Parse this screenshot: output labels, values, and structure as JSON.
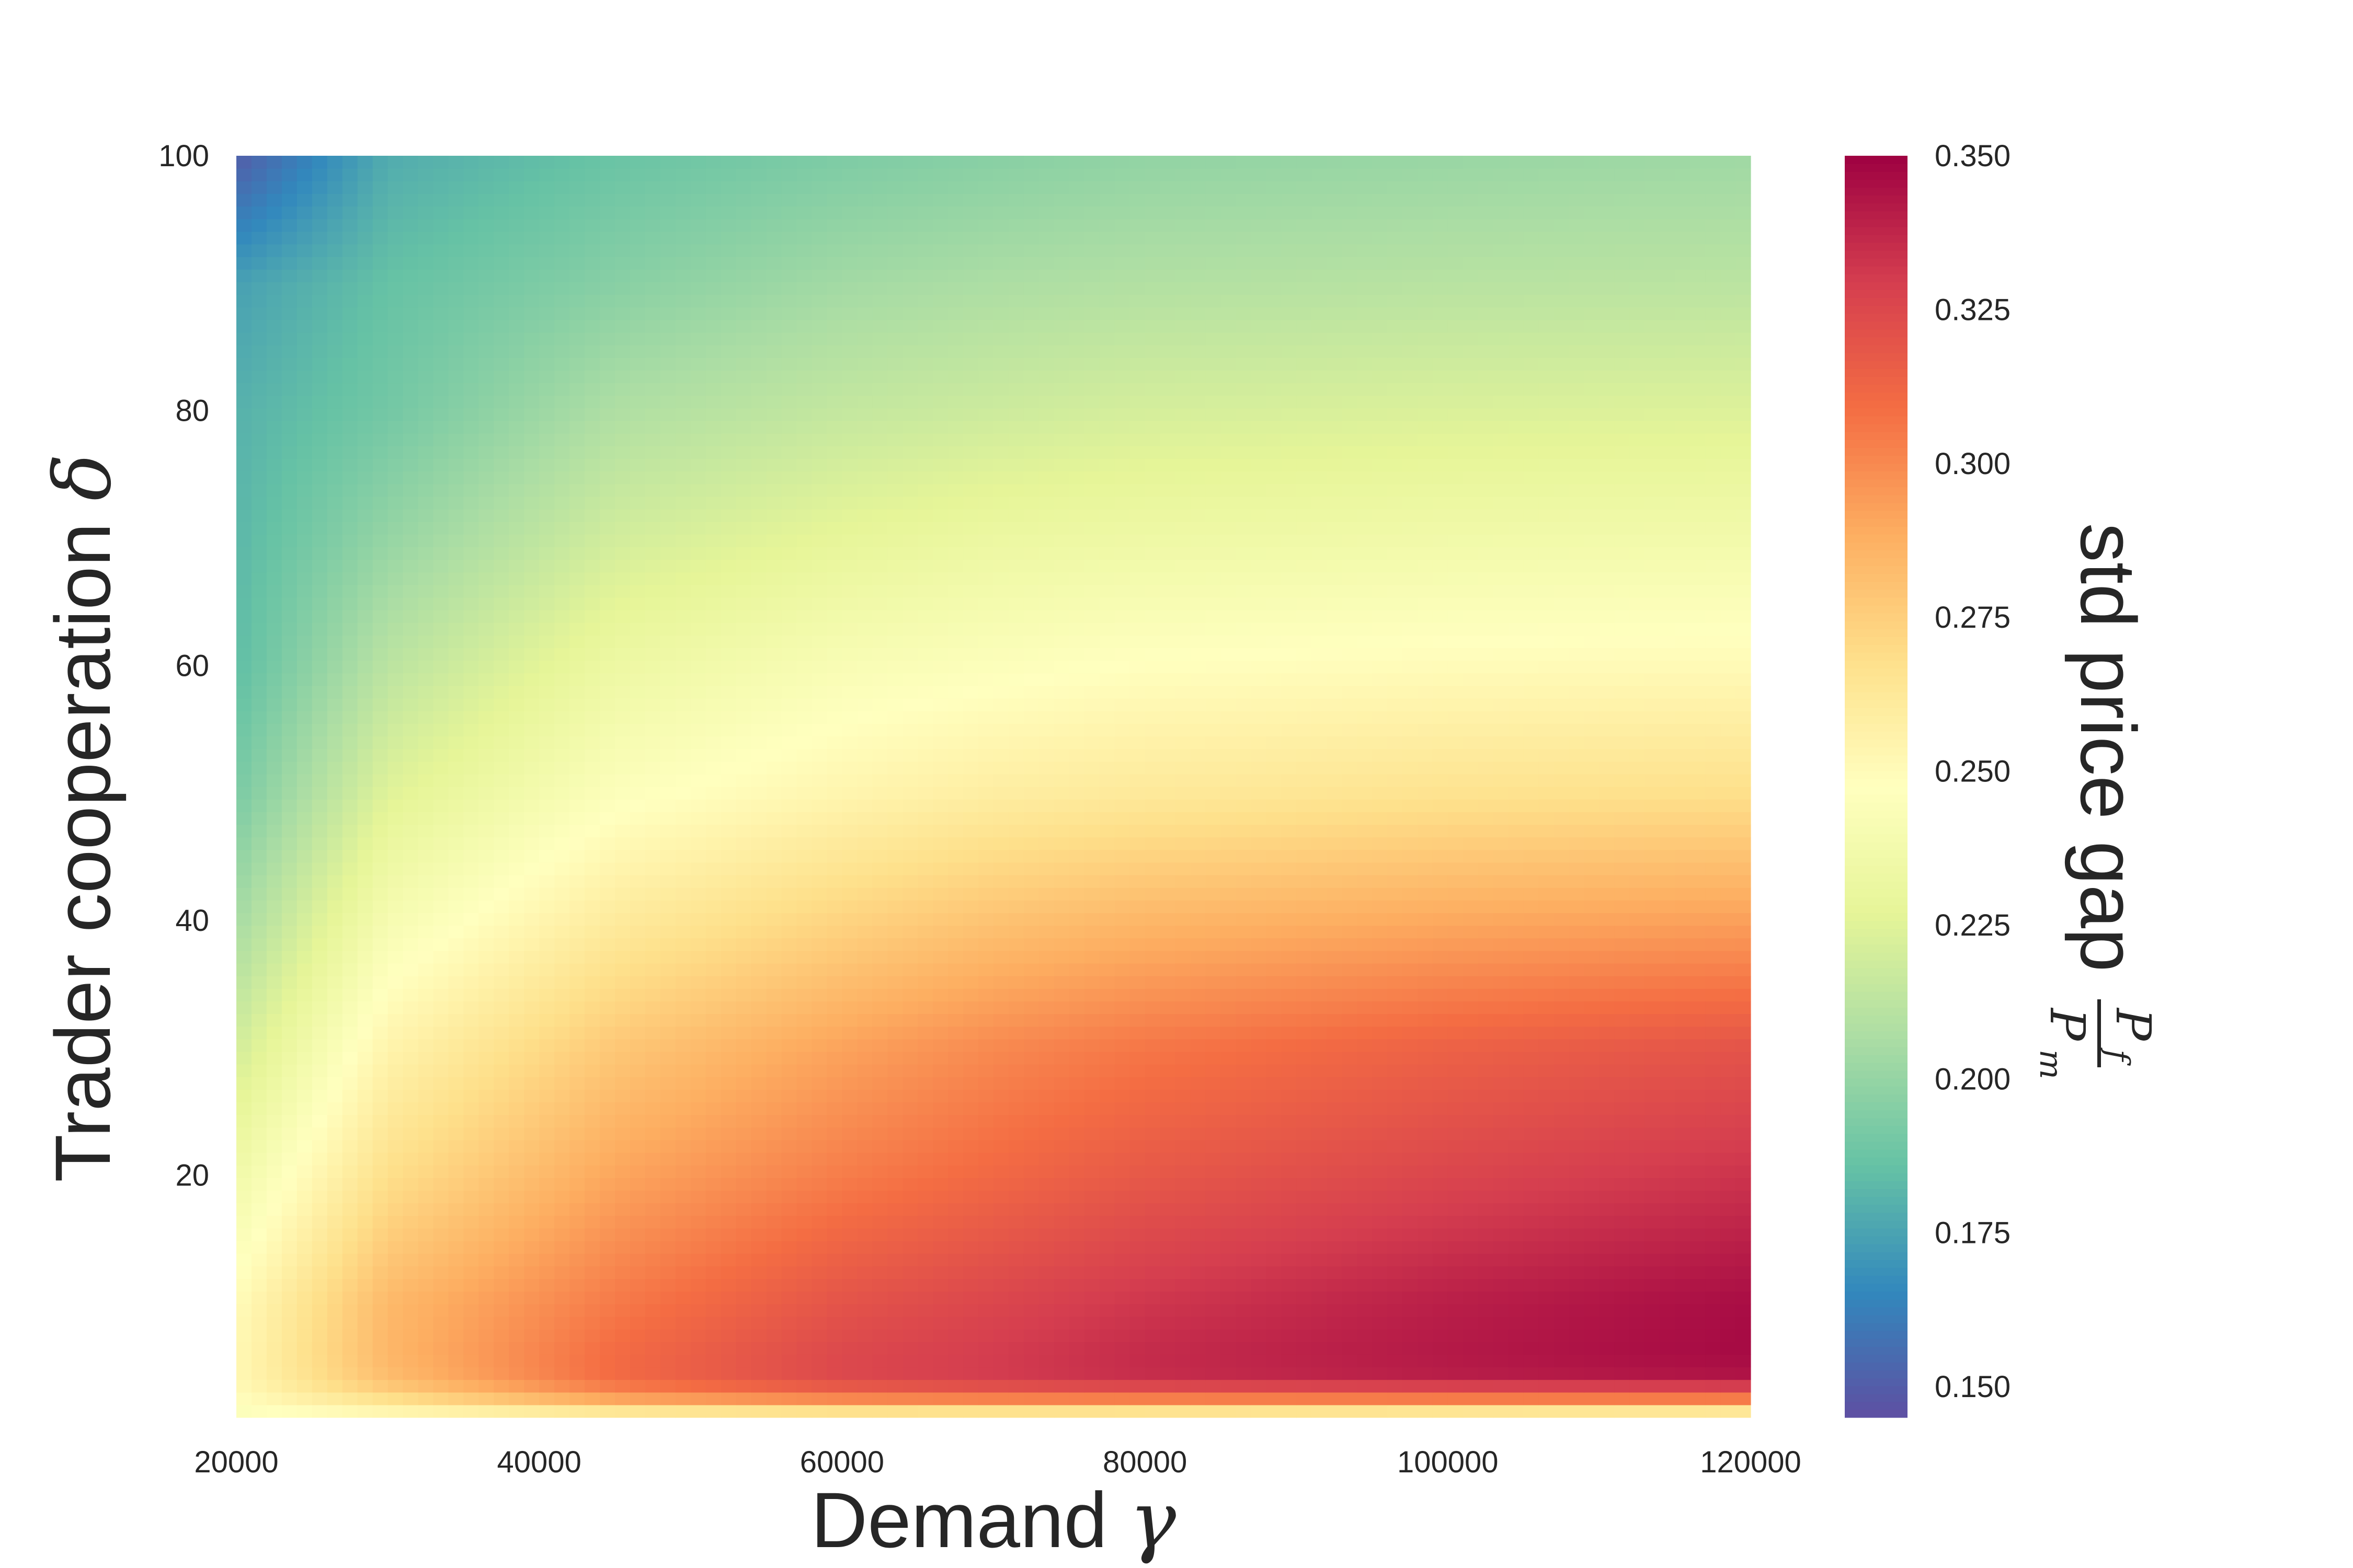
{
  "chart_data": {
    "type": "heatmap",
    "xlabel": "Demand",
    "xlabel_symbol": "γ",
    "ylabel": "Trader cooperation",
    "ylabel_symbol": "δ",
    "colorbar_label": "std price gap",
    "colorbar_label_symbol": {
      "numerator": "P",
      "numerator_sub": "f",
      "denominator": "P",
      "denominator_sub": "m"
    },
    "colormap": "Spectral",
    "colormap_stops": [
      "#9e0142",
      "#d53e4f",
      "#f46d43",
      "#fdae61",
      "#fee08b",
      "#ffffbf",
      "#e6f598",
      "#abdda4",
      "#66c2a5",
      "#3288bd",
      "#5e4fa2"
    ],
    "xlim": [
      20000,
      120000
    ],
    "ylim": [
      1,
      100
    ],
    "vlim": [
      0.145,
      0.35
    ],
    "x_ticks": [
      20000,
      40000,
      60000,
      80000,
      100000,
      120000
    ],
    "x_tick_labels": [
      "20000",
      "40000",
      "60000",
      "80000",
      "100000",
      "120000"
    ],
    "y_ticks": [
      20,
      40,
      60,
      80,
      100
    ],
    "y_tick_labels": [
      "20",
      "40",
      "60",
      "80",
      "100"
    ],
    "colorbar_ticks": [
      0.15,
      0.175,
      0.2,
      0.225,
      0.25,
      0.275,
      0.3,
      0.325,
      0.35
    ],
    "colorbar_tick_labels": [
      "0.150",
      "0.175",
      "0.200",
      "0.225",
      "0.250",
      "0.275",
      "0.300",
      "0.325",
      "0.350"
    ],
    "grid": false,
    "sample_x": [
      20000,
      30000,
      45000,
      60000,
      70000,
      80000,
      100000,
      120000
    ],
    "sample_y": [
      1,
      2,
      3,
      4,
      6,
      10,
      20,
      30,
      40,
      50,
      60,
      70,
      80,
      90,
      100
    ],
    "values": [
      [
        0.243,
        0.246,
        0.245,
        0.245,
        0.243,
        0.242,
        0.238,
        0.235
      ],
      [
        0.247,
        0.262,
        0.283,
        0.29,
        0.291,
        0.291,
        0.292,
        0.292
      ],
      [
        0.25,
        0.274,
        0.3,
        0.312,
        0.315,
        0.317,
        0.318,
        0.318
      ],
      [
        0.252,
        0.282,
        0.31,
        0.325,
        0.33,
        0.335,
        0.34,
        0.343
      ],
      [
        0.252,
        0.285,
        0.31,
        0.325,
        0.33,
        0.336,
        0.342,
        0.347
      ],
      [
        0.25,
        0.284,
        0.305,
        0.32,
        0.326,
        0.332,
        0.34,
        0.346
      ],
      [
        0.236,
        0.268,
        0.291,
        0.304,
        0.311,
        0.318,
        0.326,
        0.333
      ],
      [
        0.22,
        0.255,
        0.278,
        0.292,
        0.3,
        0.306,
        0.314,
        0.32
      ],
      [
        0.205,
        0.24,
        0.261,
        0.273,
        0.28,
        0.285,
        0.29,
        0.293
      ],
      [
        0.192,
        0.225,
        0.245,
        0.254,
        0.259,
        0.262,
        0.266,
        0.268
      ],
      [
        0.184,
        0.212,
        0.233,
        0.242,
        0.245,
        0.248,
        0.25,
        0.251
      ],
      [
        0.182,
        0.2,
        0.22,
        0.228,
        0.232,
        0.234,
        0.236,
        0.237
      ],
      [
        0.18,
        0.19,
        0.208,
        0.215,
        0.218,
        0.221,
        0.223,
        0.224
      ],
      [
        0.174,
        0.186,
        0.196,
        0.204,
        0.207,
        0.209,
        0.211,
        0.212
      ],
      [
        0.15,
        0.178,
        0.187,
        0.193,
        0.196,
        0.199,
        0.201,
        0.203
      ]
    ]
  }
}
